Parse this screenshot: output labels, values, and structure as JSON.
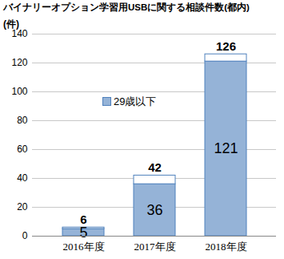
{
  "chart_data": {
    "type": "bar",
    "stacked": true,
    "title": "バイナリーオプション学習用USBに関する相談件数(都内)",
    "y_label": "(件)",
    "categories": [
      "2016年度",
      "2017年度",
      "2018年度"
    ],
    "series": [
      {
        "name": "29歳以下",
        "color": "#95b3d7",
        "values": [
          5,
          36,
          121
        ],
        "data_labels": true
      },
      {
        "name": null,
        "color": "#ffffff",
        "values": [
          1,
          6,
          5
        ]
      }
    ],
    "totals": [
      6,
      42,
      126
    ],
    "ylim": [
      0,
      140
    ],
    "yticks": [
      0,
      20,
      40,
      60,
      80,
      100,
      120,
      140
    ],
    "grid": true,
    "legend": "upper left"
  }
}
